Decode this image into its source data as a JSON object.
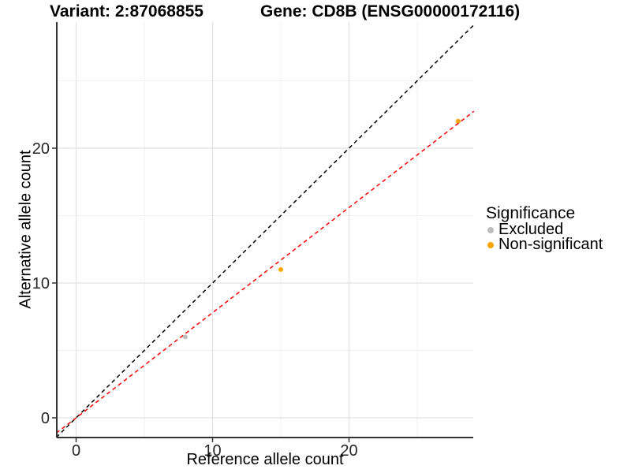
{
  "chart_data": {
    "type": "scatter",
    "title_variant": "Variant: 2:87068855",
    "title_gene": "Gene: CD8B (ENSG00000172116)",
    "xlabel": "Reference allele count",
    "ylabel": "Alternative allele count",
    "xlim": [
      -1.45,
      29.15
    ],
    "ylim": [
      -1.45,
      29.35
    ],
    "x_major_ticks": [
      0,
      10,
      20
    ],
    "y_major_ticks": [
      0,
      10,
      20
    ],
    "x_minor_ticks": [
      5,
      15,
      25
    ],
    "y_minor_ticks": [
      5,
      15,
      25
    ],
    "grid": "white background, light gray major and minor gridlines, black left and bottom axis lines",
    "points": [
      {
        "x": 8,
        "y": 6,
        "group": "Excluded"
      },
      {
        "x": 15,
        "y": 11,
        "group": "Non-significant"
      },
      {
        "x": 28,
        "y": 22,
        "group": "Non-significant"
      }
    ],
    "lines": [
      {
        "name": "identity",
        "slope": 1,
        "intercept": 0,
        "color": "#000000",
        "linetype": "dashed"
      },
      {
        "name": "fit",
        "slope": 0.78,
        "intercept": 0,
        "color": "#FF0000",
        "linetype": "dashed"
      }
    ],
    "legend": {
      "title": "Significance",
      "position": "right",
      "items": [
        {
          "label": "Excluded",
          "color": "#BEBEBE"
        },
        {
          "label": "Non-significant",
          "color": "#FFA500"
        }
      ]
    }
  }
}
